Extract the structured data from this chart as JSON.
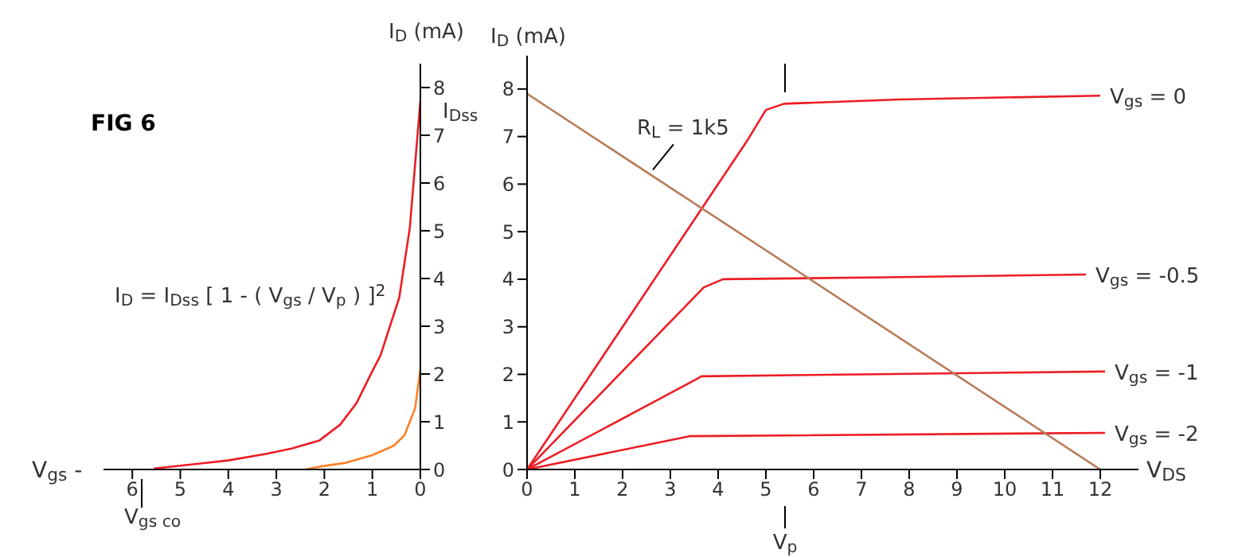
{
  "chart_data": [
    {
      "type": "line",
      "title": "FIG 6",
      "xlabel": "V$_{gs}$ -",
      "ylabel": "I$_{D}$ (mA)",
      "xlim": [
        6.6,
        0
      ],
      "xticks": [
        6,
        5,
        4,
        3,
        2,
        1,
        0
      ],
      "ylim": [
        0,
        8.5
      ],
      "yticks": [
        0,
        1,
        2,
        3,
        4,
        5,
        6,
        7,
        8
      ],
      "annotations": [
        {
          "text": "I$_{Dss}$",
          "x": 0,
          "y": 7.7
        },
        "V$_{gs co}$",
        "I$_{D}$ = I$_{Dss}$ [ 1 - ( V$_{gs}$ / V$_{p}$ ) ]$^{2}$"
      ],
      "series": [
        {
          "color": "#ed1c24",
          "x": [
            0,
            0.22,
            0.44,
            0.83,
            1.0,
            1.33,
            1.67,
            2.1,
            2.67,
            3.2,
            4.0,
            5.0,
            5.55
          ],
          "values": [
            7.72,
            5.06,
            3.6,
            2.39,
            2.06,
            1.39,
            0.94,
            0.61,
            0.44,
            0.33,
            0.19,
            0.08,
            0.02
          ]
        },
        {
          "color": "#ff7f27",
          "x": [
            0,
            0.11,
            0.33,
            0.55,
            1.0,
            1.55,
            2.1,
            2.4
          ],
          "values": [
            2.1,
            1.28,
            0.72,
            0.5,
            0.3,
            0.14,
            0.06,
            0
          ]
        }
      ]
    },
    {
      "type": "line",
      "xlabel": "V$_{DS}$",
      "ylabel": "I$_{D}$ (mA)",
      "xlim": [
        0,
        12.8
      ],
      "xticks": [
        0,
        1,
        2,
        3,
        4,
        5,
        6,
        7,
        8,
        9,
        10,
        11,
        12
      ],
      "ylim": [
        0,
        8.7
      ],
      "yticks": [
        0,
        1,
        2,
        3,
        4,
        5,
        6,
        7,
        8
      ],
      "annotations": [
        {
          "text": "R$_{L}$  = 1k5",
          "x": 2.6,
          "y": 6.2
        },
        "V$_{p}$"
      ],
      "series": [
        {
          "name": "V$_{gs}$ = 0",
          "color": "#ed1c24",
          "x": [
            0,
            4.6,
            5.0,
            5.38,
            7.8,
            12.0
          ],
          "values": [
            0,
            6.9,
            7.56,
            7.69,
            7.78,
            7.86
          ]
        },
        {
          "name": "V$_{gs}$ = -0.5",
          "color": "#ed1c24",
          "x": [
            0,
            3.7,
            4.1,
            7.5,
            11.7
          ],
          "values": [
            0,
            3.83,
            4.0,
            4.04,
            4.1
          ]
        },
        {
          "name": "V$_{gs}$ = -1",
          "color": "#ed1c24",
          "x": [
            0,
            3.55,
            3.65,
            7.0,
            12.1
          ],
          "values": [
            0,
            1.9,
            1.96,
            2.0,
            2.06
          ]
        },
        {
          "name": "V$_{gs}$ = -2",
          "color": "#ed1c24",
          "x": [
            0,
            3.4,
            12.1
          ],
          "values": [
            0,
            0.7,
            0.77
          ]
        },
        {
          "color": "#b97a57",
          "x": [
            0,
            12
          ],
          "values": [
            7.9,
            0
          ]
        }
      ]
    }
  ]
}
